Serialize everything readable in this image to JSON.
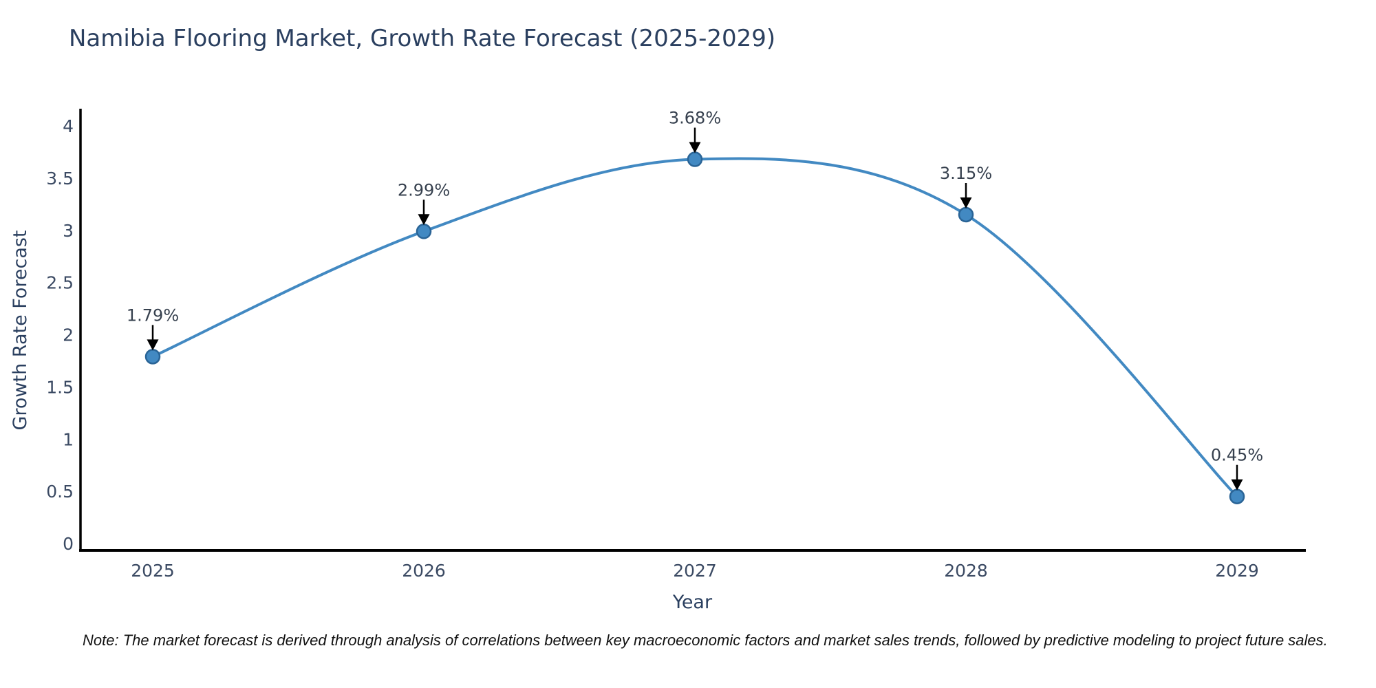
{
  "title": "Namibia Flooring Market, Growth Rate Forecast (2025-2029)",
  "note": "Note: The market forecast is derived through analysis of correlations between key macroeconomic factors and market sales trends, followed by predictive modeling to project future sales.",
  "chart_data": {
    "type": "line",
    "x": [
      2025,
      2026,
      2027,
      2028,
      2029
    ],
    "x_tick_labels": [
      "2025",
      "2026",
      "2027",
      "2028",
      "2029"
    ],
    "values": [
      1.79,
      2.99,
      3.68,
      3.15,
      0.45
    ],
    "point_labels": [
      "1.79%",
      "2.99%",
      "3.68%",
      "3.15%",
      "0.45%"
    ],
    "xlabel": "Year",
    "ylabel": "Growth Rate Forecast",
    "xlim": [
      2025,
      2029
    ],
    "ylim": [
      0,
      4
    ],
    "yticks": [
      0,
      0.5,
      1,
      1.5,
      2,
      2.5,
      3,
      3.5,
      4
    ],
    "y_tick_labels": [
      "0",
      "0.5",
      "1",
      "1.5",
      "2",
      "2.5",
      "3",
      "3.5",
      "4"
    ],
    "grid": false,
    "legend": "none",
    "smooth": true,
    "line_color": "#4289c2",
    "marker_fill": "#4289c2",
    "marker_edge": "#2a6496",
    "arrow_color": "#000000",
    "axis_color": "#000000"
  }
}
